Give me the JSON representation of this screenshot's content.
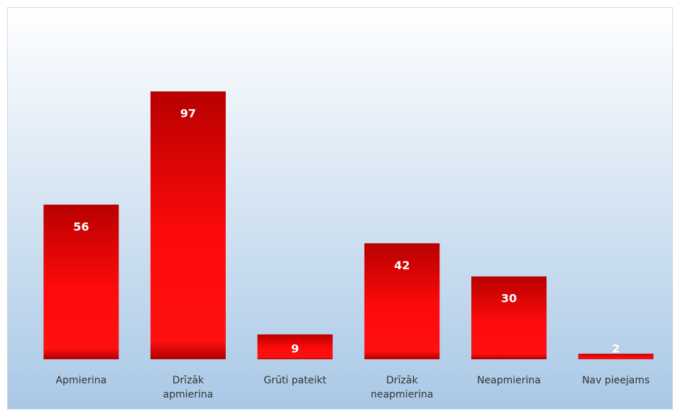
{
  "chart_data": {
    "type": "bar",
    "categories": [
      "Apmierina",
      "Drīzāk apmierina",
      "Grūti pateikt",
      "Drīzāk neapmierina",
      "Neapmierina",
      "Nav pieejams"
    ],
    "values": [
      56,
      97,
      9,
      42,
      30,
      2
    ],
    "color": "#ff0000"
  }
}
